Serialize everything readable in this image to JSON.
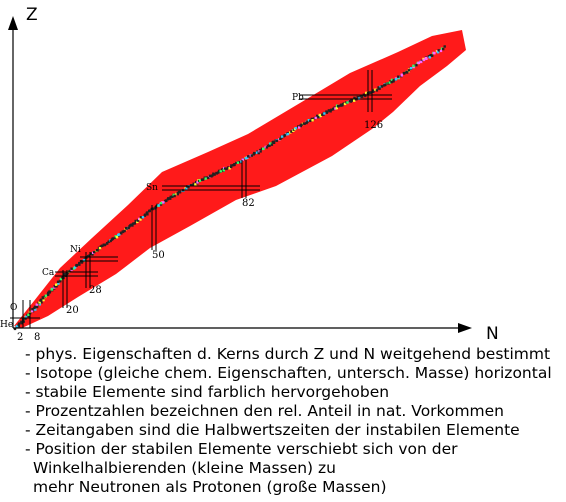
{
  "chart": {
    "y_axis_label": "Z",
    "x_axis_label": "N",
    "element_labels": [
      "He",
      "O",
      "Ca",
      "Ni",
      "Sn",
      "Pb"
    ],
    "magic_numbers": [
      "2",
      "8",
      "20",
      "28",
      "50",
      "82",
      "126"
    ],
    "colors": {
      "unstable": "#ff1a1a",
      "stable_path": "#222222",
      "stable_highlights": [
        "#ffff33",
        "#33ff66",
        "#33ccff",
        "#ff66ff"
      ],
      "grid_lines": "#000000"
    }
  },
  "notes": [
    "- phys. Eigenschaften d. Kerns durch Z und N weitgehend bestimmt",
    "- Isotope (gleiche chem. Eigenschaften, untersch. Masse) horizontal",
    "- stabile Elemente sind farblich hervorgehoben",
    "- Prozentzahlen bezeichnen den rel. Anteil in nat. Vorkommen",
    "- Zeitangaben sind die Halbwertszeiten der instabilen Elemente",
    "- Position der stabilen Elemente verschiebt sich von der",
    "Winkelhalbierenden (kleine Massen) zu",
    "mehr Neutronen als Protonen (große Massen)"
  ]
}
